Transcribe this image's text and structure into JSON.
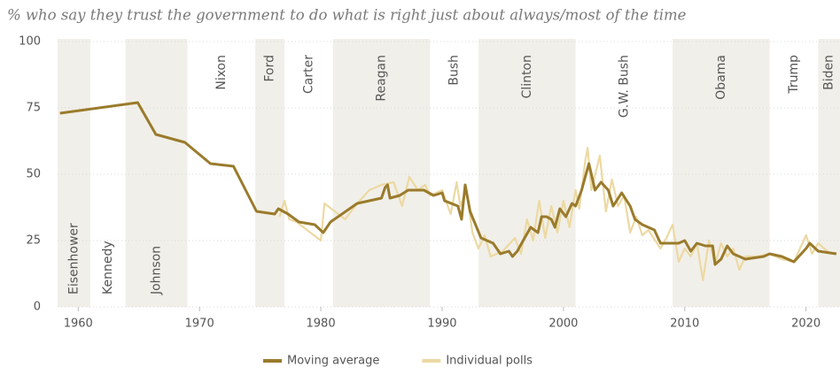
{
  "chart_data": {
    "type": "line",
    "title": "% who say they trust the government to do what is right just about always/most of the time",
    "xlim": [
      1958.3,
      2022.8
    ],
    "xticks": [
      1960,
      1970,
      1980,
      1990,
      2000,
      2010,
      2020
    ],
    "ylim": [
      0,
      100
    ],
    "yticks": [
      0,
      25,
      50,
      75,
      100
    ],
    "grid": true,
    "band_color": "#f1efe9",
    "presidents": [
      {
        "name": "Eisenhower",
        "start": 1958.3,
        "end": 1961,
        "color": "#b5433f",
        "shaded": true,
        "label_at": "bottom"
      },
      {
        "name": "Kennedy",
        "start": 1961,
        "end": 1963.9,
        "color": "#4f6b8a",
        "shaded": false,
        "label_at": "bottom"
      },
      {
        "name": "Johnson",
        "start": 1963.9,
        "end": 1969,
        "color": "#4f6b8a",
        "shaded": true,
        "label_at": "bottom"
      },
      {
        "name": "Nixon",
        "start": 1969,
        "end": 1974.6,
        "color": "#b5433f",
        "shaded": false,
        "label_at": "top"
      },
      {
        "name": "Ford",
        "start": 1974.6,
        "end": 1977,
        "color": "#b5433f",
        "shaded": true,
        "label_at": "top"
      },
      {
        "name": "Carter",
        "start": 1977,
        "end": 1981,
        "color": "#4f6b8a",
        "shaded": false,
        "label_at": "top"
      },
      {
        "name": "Reagan",
        "start": 1981,
        "end": 1989,
        "color": "#b5433f",
        "shaded": true,
        "label_at": "top"
      },
      {
        "name": "Bush",
        "start": 1989,
        "end": 1993,
        "color": "#b5433f",
        "shaded": false,
        "label_at": "top"
      },
      {
        "name": "Clinton",
        "start": 1993,
        "end": 2001,
        "color": "#4f6b8a",
        "shaded": true,
        "label_at": "top"
      },
      {
        "name": "G.W. Bush",
        "start": 2001,
        "end": 2009,
        "color": "#b5433f",
        "shaded": false,
        "label_at": "top"
      },
      {
        "name": "Obama",
        "start": 2009,
        "end": 2017,
        "color": "#4f6b8a",
        "shaded": true,
        "label_at": "top"
      },
      {
        "name": "Trump",
        "start": 2017,
        "end": 2021,
        "color": "#b5433f",
        "shaded": false,
        "label_at": "top"
      },
      {
        "name": "Biden",
        "start": 2021,
        "end": 2022.8,
        "color": "#4f6b8a",
        "shaded": true,
        "label_at": "top"
      }
    ],
    "series": [
      {
        "name": "Individual polls",
        "color": "#ecd9a3",
        "x": [
          1976.6,
          1977,
          1977.4,
          1978,
          1980,
          1980.3,
          1982,
          1983,
          1984,
          1985,
          1986,
          1986.7,
          1987.3,
          1988,
          1988.6,
          1989,
          1990,
          1990.7,
          1991.2,
          1991.5,
          1992,
          1992.5,
          1993,
          1993.5,
          1994,
          1995,
          1996,
          1996.5,
          1997,
          1997.5,
          1998,
          1998.5,
          1999,
          1999.5,
          2000,
          2000.5,
          2001,
          2001.3,
          2001.8,
          2002,
          2002.3,
          2003,
          2003.5,
          2004,
          2004.5,
          2005,
          2005.5,
          2006,
          2006.5,
          2007,
          2008,
          2008.5,
          2009,
          2009.5,
          2010,
          2010.5,
          2011,
          2011.5,
          2012,
          2012.5,
          2013,
          2013.5,
          2014,
          2014.5,
          2015,
          2016,
          2017,
          2018,
          2019,
          2020,
          2020.5,
          2021,
          2022
        ],
        "values": [
          34,
          40,
          33,
          32,
          25,
          39,
          33,
          39,
          44,
          46,
          47,
          38,
          49,
          44,
          46,
          42,
          44,
          35,
          47,
          38,
          44,
          28,
          22,
          27,
          19,
          21,
          26,
          20,
          33,
          25,
          40,
          26,
          38,
          28,
          40,
          30,
          44,
          37,
          55,
          60,
          44,
          57,
          36,
          48,
          38,
          42,
          28,
          34,
          27,
          29,
          22,
          26,
          31,
          17,
          22,
          19,
          24,
          10,
          25,
          16,
          24,
          19,
          22,
          14,
          19,
          19,
          20,
          18,
          17,
          27,
          20,
          24,
          20
        ]
      },
      {
        "name": "Moving average",
        "color": "#9a7b2c",
        "x": [
          1958.5,
          1964.9,
          1966.4,
          1968.8,
          1970.9,
          1972.8,
          1974.7,
          1976.2,
          1976.5,
          1977.3,
          1978.2,
          1979.5,
          1980.2,
          1980.8,
          1983,
          1985,
          1985.3,
          1985.5,
          1985.7,
          1986.5,
          1987.2,
          1988.5,
          1989.3,
          1990,
          1990.2,
          1991.3,
          1991.6,
          1991.9,
          1992.3,
          1993.2,
          1994.2,
          1994.8,
          1995.5,
          1995.8,
          1996.2,
          1996.8,
          1997.3,
          1997.9,
          1998.2,
          1998.6,
          1999,
          1999.3,
          1999.7,
          2000.2,
          2000.7,
          2001,
          2001.5,
          2002.1,
          2002.6,
          2003.1,
          2003.7,
          2004.1,
          2004.8,
          2005.5,
          2005.9,
          2006.5,
          2007.5,
          2008,
          2009.5,
          2010,
          2010.5,
          2011,
          2011.7,
          2012.3,
          2012.5,
          2013,
          2013.5,
          2014,
          2014.5,
          2015,
          2016.5,
          2017,
          2018,
          2019,
          2020,
          2020.3,
          2021,
          2022.5
        ],
        "values": [
          73,
          77,
          65,
          62,
          54,
          53,
          36,
          35,
          37,
          35,
          32,
          31,
          28,
          32,
          39,
          41,
          45,
          46,
          41,
          42,
          44,
          44,
          42,
          43,
          40,
          38,
          33,
          46,
          36,
          26,
          24,
          20,
          21,
          19,
          21,
          26,
          30,
          28,
          34,
          34,
          33,
          30,
          37,
          34,
          39,
          38,
          44,
          54,
          44,
          47,
          44,
          38,
          43,
          38,
          33,
          31,
          29,
          24,
          24,
          25,
          21,
          24,
          23,
          23,
          16,
          18,
          23,
          20,
          19,
          18,
          19,
          20,
          19,
          17,
          22,
          24,
          21,
          20
        ]
      }
    ],
    "legend_order": [
      1,
      0
    ]
  }
}
